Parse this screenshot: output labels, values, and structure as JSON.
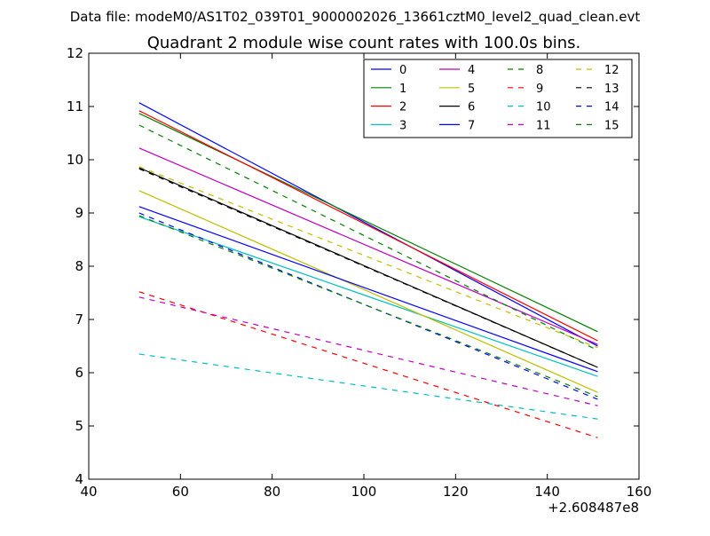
{
  "page": {
    "suptitle": "Data file: modeM0/AS1T02_039T01_9000002026_13661cztM0_level2_quad_clean.evt"
  },
  "chart_data": {
    "type": "line",
    "title": "Quadrant 2 module wise count rates with 100.0s bins.",
    "xlabel": "",
    "ylabel": "",
    "x_offset_label": "+2.608487e8",
    "xlim": [
      40,
      160
    ],
    "ylim": [
      4,
      12
    ],
    "x_ticks": [
      40,
      60,
      80,
      100,
      120,
      140,
      160
    ],
    "y_ticks": [
      4,
      5,
      6,
      7,
      8,
      9,
      10,
      11,
      12
    ],
    "x_tick_labels": [
      "40",
      "60",
      "80",
      "100",
      "120",
      "140",
      "160"
    ],
    "y_tick_labels": [
      "4",
      "5",
      "6",
      "7",
      "8",
      "9",
      "10",
      "11",
      "12"
    ],
    "grid": false,
    "legend_position": "top-right",
    "legend_columns": 4,
    "x": [
      51,
      151
    ],
    "series": [
      {
        "name": "0",
        "color": "#0000ff",
        "dash": "solid",
        "values": [
          11.07,
          6.5
        ]
      },
      {
        "name": "1",
        "color": "#008000",
        "dash": "solid",
        "values": [
          10.87,
          6.77
        ]
      },
      {
        "name": "2",
        "color": "#ff0000",
        "dash": "solid",
        "values": [
          10.92,
          6.6
        ]
      },
      {
        "name": "3",
        "color": "#00bfbf",
        "dash": "solid",
        "values": [
          8.93,
          5.93
        ]
      },
      {
        "name": "4",
        "color": "#bf00bf",
        "dash": "solid",
        "values": [
          10.22,
          6.53
        ]
      },
      {
        "name": "5",
        "color": "#bfbf00",
        "dash": "solid",
        "values": [
          9.42,
          5.63
        ]
      },
      {
        "name": "6",
        "color": "#000000",
        "dash": "solid",
        "values": [
          9.85,
          6.1
        ]
      },
      {
        "name": "7",
        "color": "#0000ff",
        "dash": "solid",
        "values": [
          9.12,
          6.02
        ]
      },
      {
        "name": "8",
        "color": "#008000",
        "dash": "dashed",
        "values": [
          10.65,
          6.42
        ]
      },
      {
        "name": "9",
        "color": "#ff0000",
        "dash": "dashed",
        "values": [
          7.52,
          4.78
        ]
      },
      {
        "name": "10",
        "color": "#00bfbf",
        "dash": "dashed",
        "values": [
          6.35,
          5.13
        ]
      },
      {
        "name": "11",
        "color": "#bf00bf",
        "dash": "dashed",
        "values": [
          7.42,
          5.38
        ]
      },
      {
        "name": "12",
        "color": "#bfbf00",
        "dash": "dashed",
        "values": [
          9.87,
          6.47
        ]
      },
      {
        "name": "13",
        "color": "#000000",
        "dash": "dashed",
        "values": [
          9.83,
          6.1
        ]
      },
      {
        "name": "14",
        "color": "#0000ff",
        "dash": "dashed",
        "values": [
          9.0,
          5.5
        ]
      },
      {
        "name": "15",
        "color": "#008000",
        "dash": "dashed",
        "values": [
          8.95,
          5.55
        ]
      }
    ]
  }
}
